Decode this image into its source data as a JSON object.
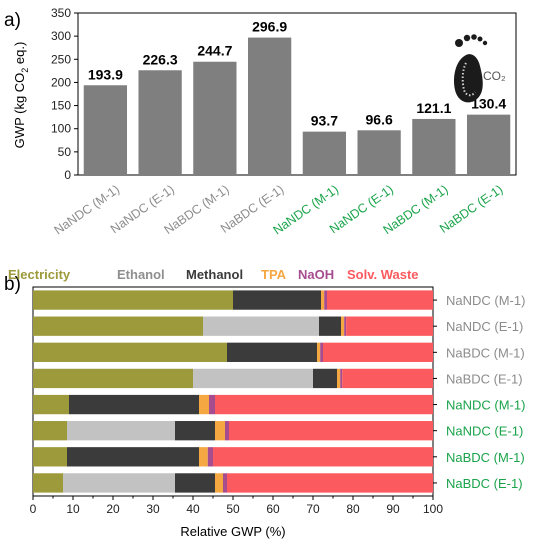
{
  "panel_a": {
    "label": "a)",
    "footprint_text": "CO₂",
    "chart_data": {
      "type": "bar",
      "categories": [
        "NaNDC (M-1)",
        "NaNDC (E-1)",
        "NaBDC (M-1)",
        "NaBDC (E-1)",
        "NaNDC (M-1)",
        "NaNDC (E-1)",
        "NaBDC (M-1)",
        "NaBDC (E-1)"
      ],
      "category_colors": [
        "#8c8c8c",
        "#8c8c8c",
        "#8c8c8c",
        "#8c8c8c",
        "#1aa34a",
        "#1aa34a",
        "#1aa34a",
        "#1aa34a"
      ],
      "values": [
        193.9,
        226.3,
        244.7,
        296.9,
        93.7,
        96.6,
        121.1,
        130.4
      ],
      "value_labels": [
        "193.9",
        "226.3",
        "244.7",
        "296.9",
        "93.7",
        "96.6",
        "121.1",
        "130.4"
      ],
      "bar_color": "#7f7f7f",
      "ylabel_main": "GWP (kg CO",
      "ylabel_sub": "2",
      "ylabel_end": " eq.)",
      "ylim": [
        0,
        350
      ],
      "yticks": [
        0,
        50,
        100,
        150,
        200,
        250,
        300,
        350
      ],
      "ytick_labels": [
        "0",
        "50",
        "100",
        "150",
        "200",
        "250",
        "300",
        "350"
      ]
    }
  },
  "panel_b": {
    "label": "b)",
    "chart_data": {
      "type": "bar",
      "orientation": "horizontal-stacked",
      "categories": [
        "NaNDC (M-1)",
        "NaNDC (E-1)",
        "NaBDC (M-1)",
        "NaBDC (E-1)",
        "NaNDC (M-1)",
        "NaNDC (E-1)",
        "NaBDC (M-1)",
        "NaBDC (E-1)"
      ],
      "category_colors": [
        "#8c8c8c",
        "#8c8c8c",
        "#8c8c8c",
        "#8c8c8c",
        "#1aa34a",
        "#1aa34a",
        "#1aa34a",
        "#1aa34a"
      ],
      "series": [
        {
          "name": "Electricity",
          "color": "#9d9a3c",
          "values": [
            50.0,
            42.5,
            48.5,
            40.0,
            9.0,
            8.5,
            8.5,
            7.5
          ]
        },
        {
          "name": "Ethanol",
          "color": "#c2c2c2",
          "values": [
            0.0,
            29.0,
            0.0,
            30.0,
            0.0,
            27.0,
            0.0,
            28.0
          ]
        },
        {
          "name": "Methanol",
          "color": "#3b3b3b",
          "values": [
            22.0,
            5.5,
            22.5,
            6.0,
            32.5,
            10.0,
            33.0,
            10.0
          ]
        },
        {
          "name": "TPA",
          "color": "#f5a742",
          "values": [
            0.8,
            0.8,
            0.8,
            0.8,
            2.5,
            2.5,
            2.2,
            2.0
          ]
        },
        {
          "name": "NaOH",
          "color": "#a64d8f",
          "values": [
            0.7,
            0.5,
            0.7,
            0.5,
            1.5,
            1.0,
            1.3,
            1.0
          ]
        },
        {
          "name": "Solv. Waste",
          "color": "#fb5a5e",
          "values": [
            26.5,
            21.7,
            27.5,
            22.7,
            54.5,
            51.0,
            55.0,
            51.5
          ]
        }
      ],
      "legend_colors": [
        "#9d9a3c",
        "#8f8f8f",
        "#3b3b3b",
        "#f5a742",
        "#a64d8f",
        "#fb5a5e"
      ],
      "xlabel": "Relative GWP (%)",
      "xlim": [
        0,
        100
      ],
      "xticks": [
        0,
        10,
        20,
        30,
        40,
        50,
        60,
        70,
        80,
        90,
        100
      ],
      "xtick_labels": [
        "0",
        "10",
        "20",
        "30",
        "40",
        "50",
        "60",
        "70",
        "80",
        "90",
        "100"
      ]
    }
  }
}
